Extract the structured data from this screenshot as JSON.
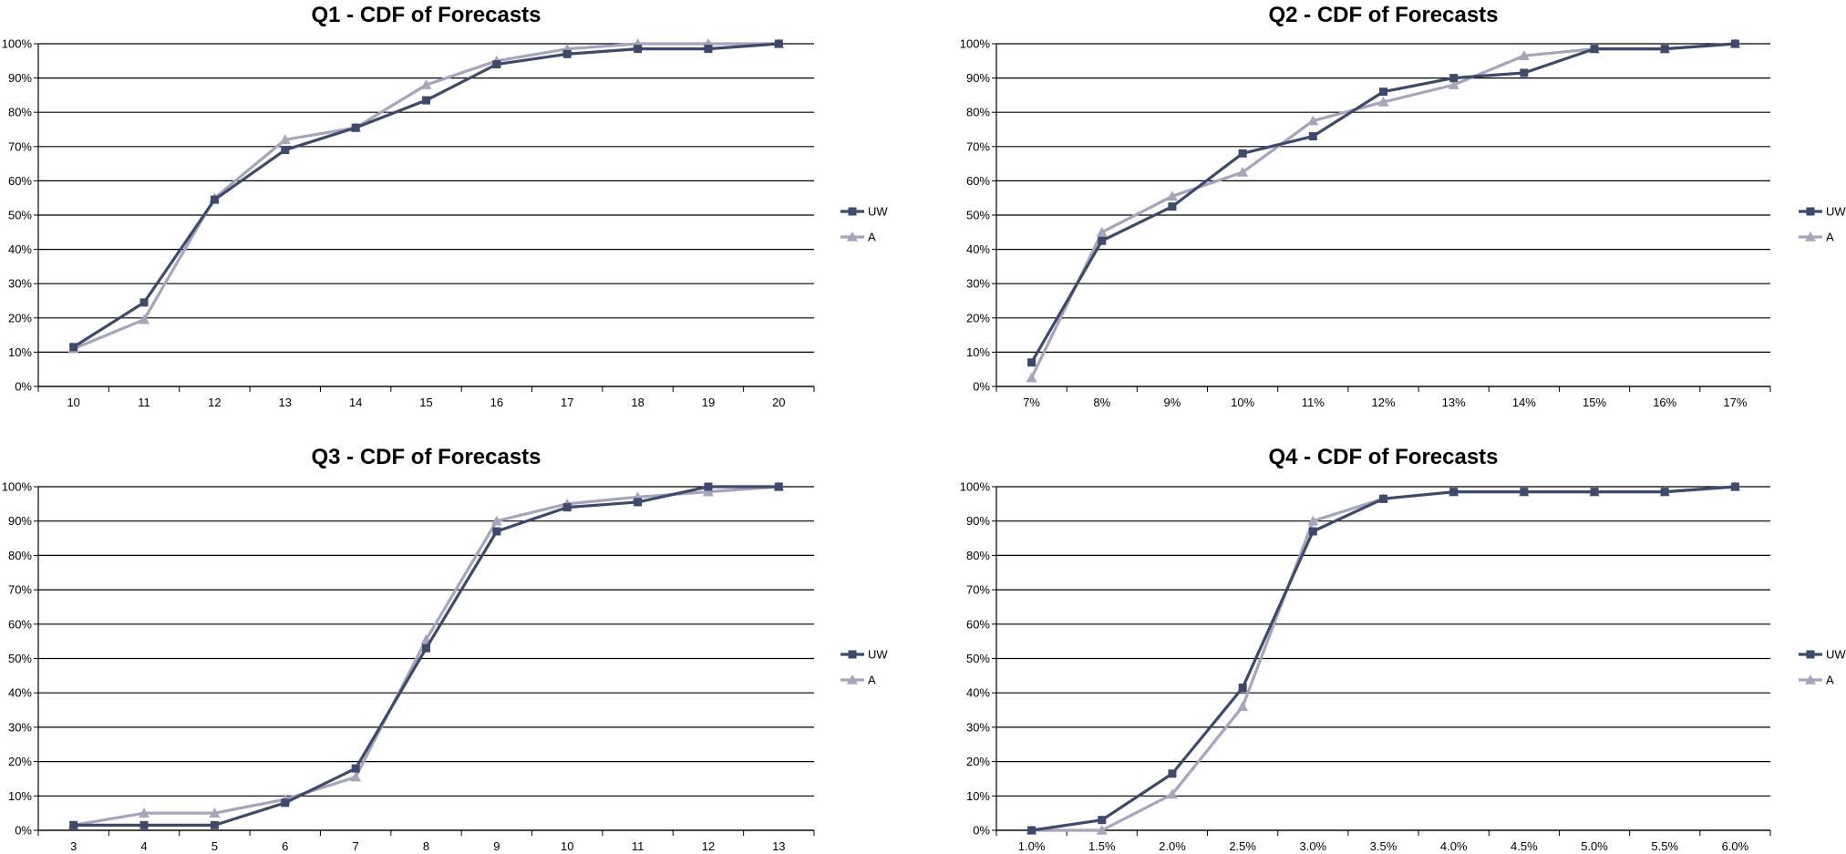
{
  "chart_data": [
    {
      "type": "line",
      "title": "Q1 - CDF of Forecasts",
      "categories": [
        "10",
        "11",
        "12",
        "13",
        "14",
        "15",
        "16",
        "17",
        "18",
        "19",
        "20"
      ],
      "yticks": [
        "0%",
        "10%",
        "20%",
        "30%",
        "40%",
        "50%",
        "60%",
        "70%",
        "80%",
        "90%",
        "100%"
      ],
      "ylim": [
        0,
        100
      ],
      "grid": true,
      "legend_position": "right",
      "series": [
        {
          "name": "UW",
          "marker": "square",
          "color": "#3d4a6b",
          "values": [
            11.5,
            24.5,
            54.5,
            69,
            75.5,
            83.5,
            94,
            97,
            98.5,
            98.5,
            100
          ]
        },
        {
          "name": "A",
          "marker": "triangle",
          "color": "#a7a4bd",
          "values": [
            11,
            19.5,
            55,
            72,
            75.5,
            88,
            95,
            98.5,
            100,
            100,
            100
          ]
        }
      ]
    },
    {
      "type": "line",
      "title": "Q2 - CDF of Forecasts",
      "categories": [
        "7%",
        "8%",
        "9%",
        "10%",
        "11%",
        "12%",
        "13%",
        "14%",
        "15%",
        "16%",
        "17%"
      ],
      "yticks": [
        "0%",
        "10%",
        "20%",
        "30%",
        "40%",
        "50%",
        "60%",
        "70%",
        "80%",
        "90%",
        "100%"
      ],
      "ylim": [
        0,
        100
      ],
      "grid": true,
      "legend_position": "right",
      "series": [
        {
          "name": "UW",
          "marker": "square",
          "color": "#3d4a6b",
          "values": [
            7,
            42.5,
            52.5,
            68,
            73,
            86,
            90,
            91.5,
            98.5,
            98.5,
            100
          ]
        },
        {
          "name": "A",
          "marker": "triangle",
          "color": "#a7a4bd",
          "values": [
            2.5,
            45,
            55.5,
            62.5,
            77.5,
            83,
            88,
            96.5,
            98.5,
            98.5,
            100
          ]
        }
      ]
    },
    {
      "type": "line",
      "title": "Q3 - CDF of Forecasts",
      "categories": [
        "3",
        "4",
        "5",
        "6",
        "7",
        "8",
        "9",
        "10",
        "11",
        "12",
        "13"
      ],
      "yticks": [
        "0%",
        "10%",
        "20%",
        "30%",
        "40%",
        "50%",
        "60%",
        "70%",
        "80%",
        "90%",
        "100%"
      ],
      "ylim": [
        0,
        100
      ],
      "grid": true,
      "legend_position": "right",
      "series": [
        {
          "name": "UW",
          "marker": "square",
          "color": "#3d4a6b",
          "values": [
            1.5,
            1.5,
            1.5,
            8,
            18,
            53,
            87,
            94,
            95.5,
            100,
            100
          ]
        },
        {
          "name": "A",
          "marker": "triangle",
          "color": "#a7a4bd",
          "values": [
            1.5,
            5,
            5,
            9,
            15.5,
            55.5,
            90,
            95,
            97,
            98.5,
            100
          ]
        }
      ]
    },
    {
      "type": "line",
      "title": "Q4 - CDF of Forecasts",
      "categories": [
        "1.0%",
        "1.5%",
        "2.0%",
        "2.5%",
        "3.0%",
        "3.5%",
        "4.0%",
        "4.5%",
        "5.0%",
        "5.5%",
        "6.0%"
      ],
      "yticks": [
        "0%",
        "10%",
        "20%",
        "30%",
        "40%",
        "50%",
        "60%",
        "70%",
        "80%",
        "90%",
        "100%"
      ],
      "ylim": [
        0,
        100
      ],
      "grid": true,
      "legend_position": "right",
      "series": [
        {
          "name": "UW",
          "marker": "square",
          "color": "#3d4a6b",
          "values": [
            0,
            3,
            16.5,
            41.5,
            87,
            96.5,
            98.5,
            98.5,
            98.5,
            98.5,
            100
          ]
        },
        {
          "name": "A",
          "marker": "triangle",
          "color": "#a7a4bd",
          "values": [
            0,
            0,
            10.5,
            36,
            90,
            96.5,
            98.5,
            98.5,
            98.5,
            98.5,
            100
          ]
        }
      ]
    }
  ]
}
